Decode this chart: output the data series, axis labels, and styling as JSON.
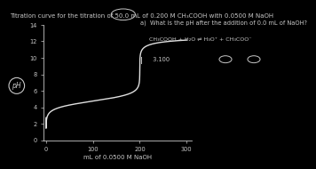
{
  "title": "Titration curve for the titration of 50.0 mL of 0.200 M CH₃COOH with 0.0500 M NaOH",
  "xlabel": "mL of 0.0500 M NaOH",
  "ylabel": "pH",
  "xlim": [
    -5,
    310
  ],
  "ylim": [
    0,
    14
  ],
  "yticks": [
    0.0,
    2.0,
    4.0,
    6.0,
    8.0,
    10.0,
    12.0,
    14.0
  ],
  "xticks": [
    0.0,
    100.0,
    200.0,
    300.0
  ],
  "background_color": "#000000",
  "axes_color": "#c8c8c8",
  "line_color": "#e0e0e0",
  "title_color": "#c8c8c8",
  "annotation_text": "a)  What is the pH after the addition of 0.0 mL of NaOH?",
  "equation_text": "CH₃COOH + H₂O ⇌ H₃O⁺ + CH₃COO⁻",
  "sub_text": "3.100",
  "circle_label": "pH",
  "title_fontsize": 5.0,
  "axis_fontsize": 5.0,
  "tick_fontsize": 4.8,
  "annotation_fontsize": 4.8,
  "eq_fontsize": 4.5
}
